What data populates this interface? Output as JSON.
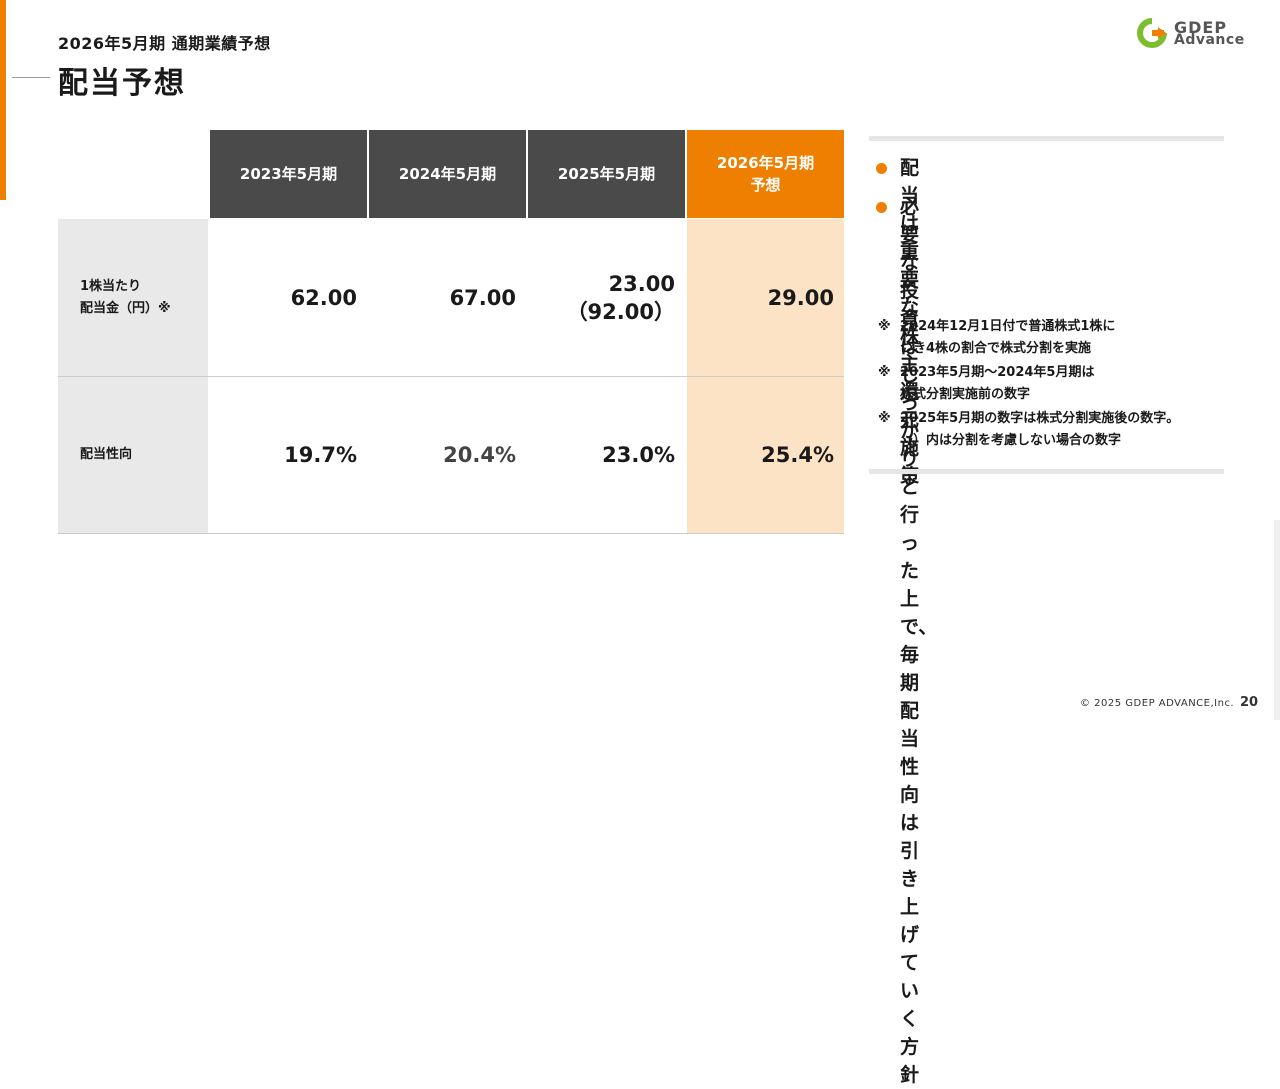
{
  "header": {
    "subtitle": "2026年5月期 通期業績予想",
    "title": "配当予想"
  },
  "logo": {
    "line1": "GDEP",
    "line2": "Advance"
  },
  "colors": {
    "accent": "#EE7F00",
    "header_dark": "#4a4a4a",
    "highlight": "#FDE3C6",
    "label_bg": "#e9e9e9"
  },
  "table": {
    "columns": [
      "2023年5月期",
      "2024年5月期",
      "2025年5月期",
      "2026年5月期\n予想"
    ],
    "rows": [
      {
        "label": "1株当たり\n配当金（円）※",
        "values": [
          "62.00",
          "67.00",
          "23.00\n（92.00）",
          "29.00"
        ]
      },
      {
        "label": "配当性向",
        "values": [
          "19.7%",
          "20.4%",
          "23.0%",
          "25.4%"
        ]
      }
    ]
  },
  "panel": {
    "bullets": [
      "配当は重要な株主還元施策",
      "必要な投資はしっかりと\n行った上で、毎期配当性向は引\nき上げていく方針"
    ],
    "notes": [
      {
        "mark": "※",
        "text": "2024年12月1日付で普通株式1株に\nつき4株の割合で株式分割を実施"
      },
      {
        "mark": "※",
        "text": "2023年5月期～2024年5月期は\n株式分割実施前の数字"
      },
      {
        "mark": "※",
        "text": "2025年5月期の数字は株式分割実施後の数字。\n（）内は分割を考慮しない場合の数字"
      }
    ]
  },
  "footer": {
    "copyright": "© 2025 GDEP ADVANCE,Inc.",
    "page": "20"
  }
}
